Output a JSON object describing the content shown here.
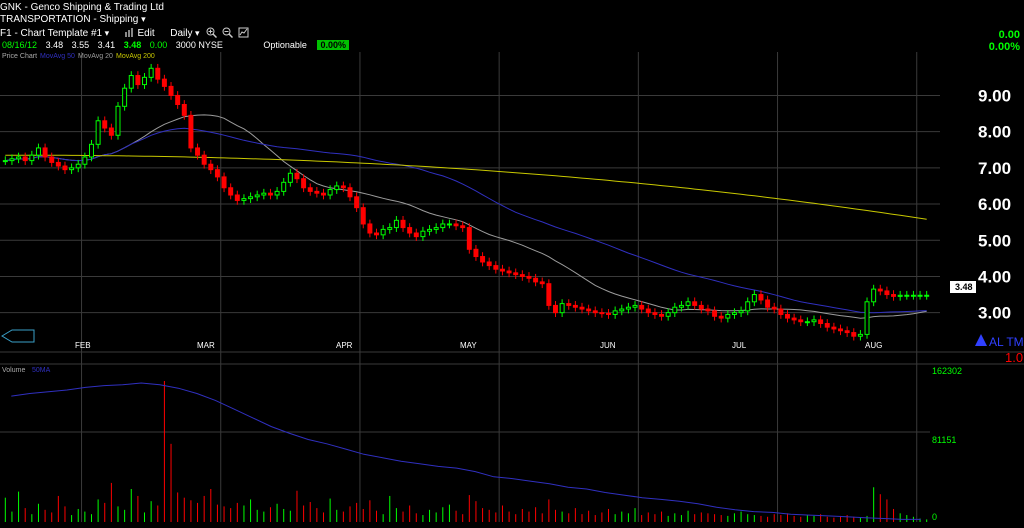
{
  "header": {
    "symbol": "GNK",
    "name_sep": " - ",
    "company": "Genco Shipping & Trading Ltd",
    "sector": "TRANSPORTATION - Shipping",
    "template": "F1 - Chart Template #1",
    "edit_label": "Edit",
    "period": "Daily",
    "date": "08/16/12",
    "open": "3.48",
    "high": "3.55",
    "low": "3.41",
    "close": "3.48",
    "change": "0.00",
    "volume": "3000",
    "exchange": "NYSE",
    "optionable_label": "Optionable",
    "optionable_value": "0.00%",
    "right_change": "0.00",
    "right_pct": "0.00%"
  },
  "price_panel": {
    "legend": [
      "Price Chart",
      "MovAvg 50",
      "MovAvg 20",
      "MovAvg 200"
    ],
    "price_tag": "3.48",
    "alert_label": "AL TML",
    "alert_value": "1.0"
  },
  "volume_panel": {
    "legend": [
      "Volume",
      "50MA"
    ],
    "ticks": [
      "162302",
      "81151",
      "0"
    ]
  },
  "colors": {
    "up": "#00ff00",
    "down": "#ff0000",
    "ma20": "#9c9c9c",
    "ma50": "#3030c0",
    "ma200": "#c8c800",
    "grid": "#3a3a3a"
  },
  "chart_data": {
    "type": "candlestick",
    "title": "GNK - Genco Shipping & Trading Ltd",
    "months": [
      "FEB",
      "MAR",
      "APR",
      "MAY",
      "JUN",
      "JUL",
      "AUG"
    ],
    "y_ticks": [
      "9.00",
      "8.00",
      "7.00",
      "6.00",
      "5.00",
      "4.00",
      "3.00"
    ],
    "ylim": [
      2.3,
      10.2
    ],
    "close": [
      7.2,
      7.25,
      7.3,
      7.2,
      7.35,
      7.55,
      7.3,
      7.15,
      7.05,
      6.95,
      7.0,
      7.1,
      7.3,
      7.65,
      8.3,
      8.1,
      7.9,
      8.7,
      9.2,
      9.55,
      9.3,
      9.5,
      9.75,
      9.45,
      9.25,
      9.0,
      8.75,
      8.45,
      7.55,
      7.35,
      7.1,
      6.95,
      6.75,
      6.45,
      6.25,
      6.1,
      6.15,
      6.2,
      6.25,
      6.3,
      6.25,
      6.35,
      6.6,
      6.85,
      6.7,
      6.45,
      6.35,
      6.3,
      6.25,
      6.4,
      6.5,
      6.45,
      6.2,
      5.9,
      5.45,
      5.2,
      5.15,
      5.3,
      5.35,
      5.55,
      5.35,
      5.2,
      5.1,
      5.25,
      5.3,
      5.35,
      5.45,
      5.45,
      5.4,
      5.35,
      4.75,
      4.55,
      4.4,
      4.3,
      4.2,
      4.15,
      4.1,
      4.05,
      4.0,
      3.95,
      3.85,
      3.8,
      3.2,
      3.0,
      3.25,
      3.2,
      3.15,
      3.1,
      3.05,
      3.0,
      2.98,
      2.95,
      3.05,
      3.1,
      3.15,
      3.2,
      3.1,
      3.0,
      2.95,
      2.9,
      3.0,
      3.15,
      3.2,
      3.3,
      3.2,
      3.1,
      3.05,
      2.9,
      2.85,
      2.95,
      3.0,
      3.05,
      3.3,
      3.5,
      3.35,
      3.15,
      3.1,
      2.95,
      2.85,
      2.8,
      2.75,
      2.75,
      2.8,
      2.7,
      2.6,
      2.55,
      2.5,
      2.45,
      2.35,
      2.4,
      3.3,
      3.65,
      3.6,
      3.5,
      3.45,
      3.48,
      3.48,
      3.48,
      3.48,
      3.48
    ],
    "volume": [
      28000,
      12000,
      35000,
      16000,
      9000,
      21000,
      14000,
      11000,
      30000,
      18000,
      8000,
      15000,
      12000,
      9000,
      26000,
      22000,
      45000,
      18000,
      14000,
      38000,
      30000,
      11000,
      24000,
      19000,
      162302,
      90000,
      34000,
      28000,
      25000,
      22000,
      30000,
      38000,
      20000,
      18000,
      16000,
      22000,
      19000,
      26000,
      14000,
      12000,
      17000,
      21000,
      15000,
      13000,
      36000,
      19000,
      23000,
      16000,
      11000,
      27000,
      14000,
      12000,
      18000,
      22000,
      15000,
      25000,
      13000,
      9000,
      30000,
      16000,
      12000,
      19000,
      10000,
      8000,
      14000,
      11000,
      17000,
      20000,
      13000,
      9000,
      31000,
      24000,
      16000,
      14000,
      11000,
      19000,
      12000,
      9000,
      15000,
      12000,
      17000,
      10000,
      26000,
      14000,
      12000,
      10000,
      16000,
      9000,
      13000,
      8000,
      11000,
      15000,
      9000,
      12000,
      10000,
      16000,
      8000,
      11000,
      9000,
      12000,
      7000,
      10000,
      8000,
      13000,
      9000,
      11000,
      10000,
      9000,
      8000,
      7000,
      10000,
      12000,
      9000,
      8000,
      7000,
      6000,
      9000,
      8000,
      10000,
      7000,
      6000,
      8000,
      7000,
      9000,
      6000,
      5000,
      7000,
      8000,
      6000,
      5000,
      7000,
      40000,
      32000,
      26000,
      15000,
      10000,
      8000,
      6000,
      4000,
      3000
    ],
    "vol_ma": [
      145000,
      148000,
      150000,
      152000,
      155000,
      157000,
      158000,
      160000,
      158000,
      154000,
      148000,
      140000,
      130000,
      120000,
      110000,
      102000,
      95000,
      90000,
      84000,
      78000,
      74000,
      70000,
      67000,
      64000,
      62000,
      58000,
      52000,
      50000,
      47000,
      44000,
      40000,
      38000,
      34000,
      31000,
      28000,
      26000,
      24000,
      21000,
      17000,
      14000,
      12000,
      11000,
      9000,
      8000,
      7000,
      6000,
      5000,
      4000,
      3000,
      3000
    ],
    "price_ylim": [
      2.3,
      10.2
    ],
    "volume_ylim": [
      0,
      175000
    ]
  }
}
